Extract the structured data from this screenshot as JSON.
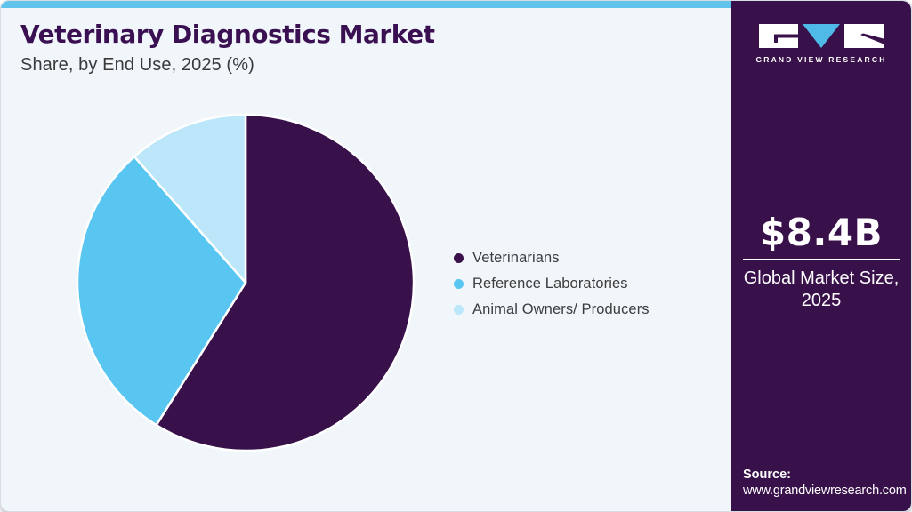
{
  "colors": {
    "card_bg": "#f1f6fa",
    "topbar_blue": "#5fc3ec",
    "sidebar_purple": "#38104a",
    "title_purple": "#3b1052",
    "text_dark": "#3a3a3a",
    "white": "#ffffff",
    "logo_v_blue": "#4fb9e8"
  },
  "header": {
    "title": "Veterinary Diagnostics Market",
    "subtitle": "Share, by End Use, 2025 (%)"
  },
  "chart_data": {
    "type": "pie",
    "title": "Veterinary Diagnostics Market Share, by End Use, 2025 (%)",
    "unit": "%",
    "start_angle_deg_from_top": 0,
    "direction": "clockwise",
    "legend_position": "right",
    "segments": [
      {
        "label": "Veterinarians",
        "value": 58.9,
        "color": "#38104a"
      },
      {
        "label": "Reference Laboratories",
        "value": 29.6,
        "color": "#59c5f1"
      },
      {
        "label": "Animal Owners/ Producers",
        "value": 11.5,
        "color": "#bce7fa"
      }
    ]
  },
  "sidebar": {
    "logo_text": "GRAND VIEW RESEARCH",
    "market_size": {
      "value": "$8.4B",
      "caption": "Global Market Size, 2025"
    },
    "source": {
      "label": "Source:",
      "url": "www.grandviewresearch.com"
    }
  }
}
